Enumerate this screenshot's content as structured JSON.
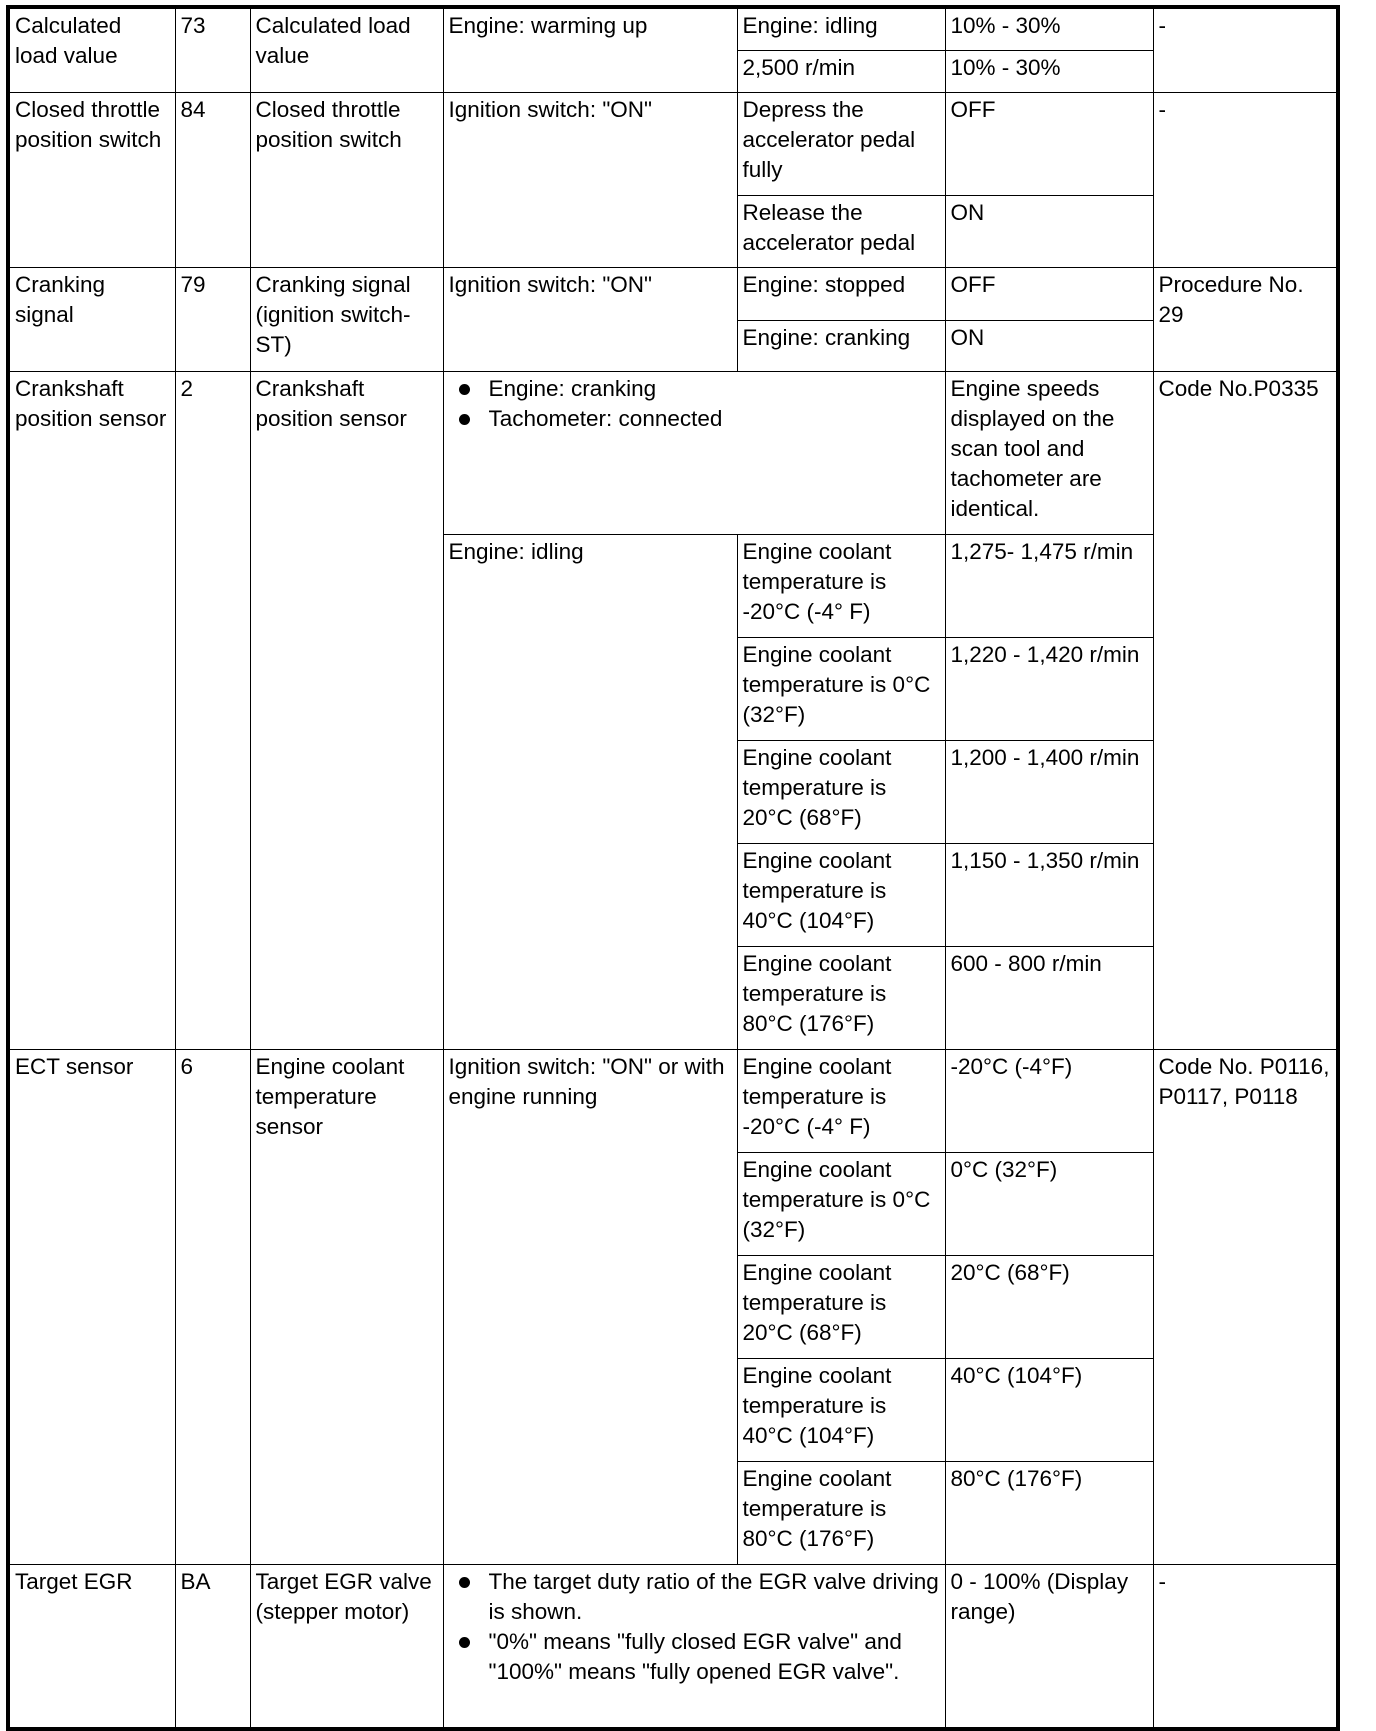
{
  "groups": [
    {
      "name": "Calculated load value",
      "sid": "73",
      "item": "Calculated load value",
      "ref": "-",
      "subs": [
        {
          "condition": "Engine: warming up",
          "checks": [
            {
              "test": "Engine: idling",
              "value": "10% - 30%"
            },
            {
              "test": "2,500 r/min",
              "value": "10% - 30%"
            }
          ]
        }
      ]
    },
    {
      "name": "Closed throttle position switch",
      "sid": "84",
      "item": "Closed throttle position switch",
      "ref": "-",
      "subs": [
        {
          "condition": "Ignition switch: \"ON\"",
          "checks": [
            {
              "test": "Depress the accelerator pedal fully",
              "value": "OFF"
            },
            {
              "test": "Release the accelerator pedal",
              "value": "ON"
            }
          ]
        }
      ]
    },
    {
      "name": "Cranking signal",
      "sid": "79",
      "item": "Cranking signal (ignition switch-ST)",
      "ref": "Procedure No. 29",
      "subs": [
        {
          "condition": "Ignition switch: \"ON\"",
          "checks": [
            {
              "test": "Engine: stopped",
              "value": "OFF"
            },
            {
              "test": "Engine: cranking",
              "value": "ON"
            }
          ]
        }
      ]
    },
    {
      "name": "Crankshaft position sensor",
      "sid": "2",
      "item": "Crankshaft position sensor",
      "ref": "Code No.P0335",
      "subs": [
        {
          "bullets": [
            "Engine: cranking",
            "Tachometer: connected"
          ],
          "value": "Engine speeds displayed on the scan tool and tachometer are identical."
        },
        {
          "condition": "Engine: idling",
          "checks": [
            {
              "test": "Engine coolant temperature is -20°C (-4° F)",
              "value": "1,275- 1,475 r/min"
            },
            {
              "test": "Engine coolant temperature is 0°C (32°F)",
              "value": "1,220 - 1,420 r/min"
            },
            {
              "test": "Engine coolant temperature is 20°C (68°F)",
              "value": "1,200 - 1,400 r/min"
            },
            {
              "test": "Engine coolant temperature is 40°C (104°F)",
              "value": "1,150 - 1,350 r/min"
            },
            {
              "test": "Engine coolant temperature is 80°C (176°F)",
              "value": "600 - 800 r/min"
            }
          ]
        }
      ]
    },
    {
      "name": "ECT sensor",
      "sid": "6",
      "item": "Engine coolant temperature sensor",
      "ref": "Code No. P0116, P0117, P0118",
      "subs": [
        {
          "condition": "Ignition switch: \"ON\" or with engine running",
          "checks": [
            {
              "test": "Engine coolant temperature is -20°C (-4° F)",
              "value": "-20°C (-4°F)"
            },
            {
              "test": "Engine coolant temperature is 0°C (32°F)",
              "value": "0°C (32°F)"
            },
            {
              "test": "Engine coolant temperature is 20°C (68°F)",
              "value": "20°C (68°F)"
            },
            {
              "test": "Engine coolant temperature is 40°C (104°F)",
              "value": "40°C (104°F)"
            },
            {
              "test": "Engine coolant temperature is 80°C (176°F)",
              "value": "80°C (176°F)"
            }
          ]
        }
      ]
    },
    {
      "name": "Target EGR",
      "sid": "BA",
      "item": "Target EGR valve (stepper motor)",
      "ref": "-",
      "subs": [
        {
          "bullets": [
            "The target duty ratio of the EGR valve driving is shown.",
            "\"0%\" means \"fully closed EGR valve\" and \"100%\" means \"fully opened EGR valve\"."
          ],
          "value": "0 - 100% (Display range)"
        }
      ]
    }
  ]
}
